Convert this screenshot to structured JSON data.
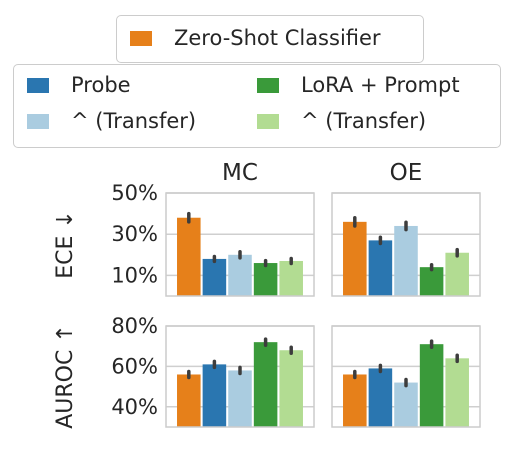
{
  "chart_data": {
    "type": "bar",
    "legend": {
      "top": [
        {
          "name": "Zero-Shot Classifier",
          "color": "#e6801a"
        }
      ],
      "bottom": [
        {
          "name": "Probe",
          "color": "#2a76b0"
        },
        {
          "name": "^ (Transfer)",
          "color": "#aacce0"
        },
        {
          "name": "LoRA + Prompt",
          "color": "#3a9a3a"
        },
        {
          "name": "^ (Transfer)",
          "color": "#b2dc92"
        }
      ]
    },
    "columns": [
      "MC",
      "OE"
    ],
    "rows": [
      {
        "ylabel": "ECE ↓",
        "ylim": [
          0,
          50
        ],
        "yticks": [
          10,
          30,
          50
        ],
        "ytick_labels": [
          "10%",
          "30%",
          "50%"
        ]
      },
      {
        "ylabel": "AUROC ↑",
        "ylim": [
          30,
          80
        ],
        "yticks": [
          40,
          60,
          80
        ],
        "ytick_labels": [
          "40%",
          "60%",
          "80%"
        ]
      }
    ],
    "series": [
      {
        "name": "Zero-Shot Classifier",
        "color": "#e6801a"
      },
      {
        "name": "Probe",
        "color": "#2a76b0"
      },
      {
        "name": "^ (Transfer)",
        "color": "#aacce0"
      },
      {
        "name": "LoRA + Prompt",
        "color": "#3a9a3a"
      },
      {
        "name": "^ (Transfer)",
        "color": "#b2dc92"
      }
    ],
    "panels": [
      {
        "row": 0,
        "col": 0,
        "values": [
          38,
          18,
          20,
          16,
          17
        ],
        "errors": [
          2,
          1.2,
          1.5,
          1.2,
          1.2
        ]
      },
      {
        "row": 0,
        "col": 1,
        "values": [
          36,
          27,
          34,
          14,
          21
        ],
        "errors": [
          2,
          1.5,
          1.8,
          1.2,
          1.5
        ]
      },
      {
        "row": 1,
        "col": 0,
        "values": [
          56,
          61,
          58,
          72,
          68
        ],
        "errors": [
          1.5,
          1.5,
          1.5,
          1.5,
          1.5
        ]
      },
      {
        "row": 1,
        "col": 1,
        "values": [
          56,
          59,
          52,
          71,
          64
        ],
        "errors": [
          1.5,
          1.5,
          1.5,
          1.5,
          1.5
        ]
      }
    ],
    "grid": true
  }
}
